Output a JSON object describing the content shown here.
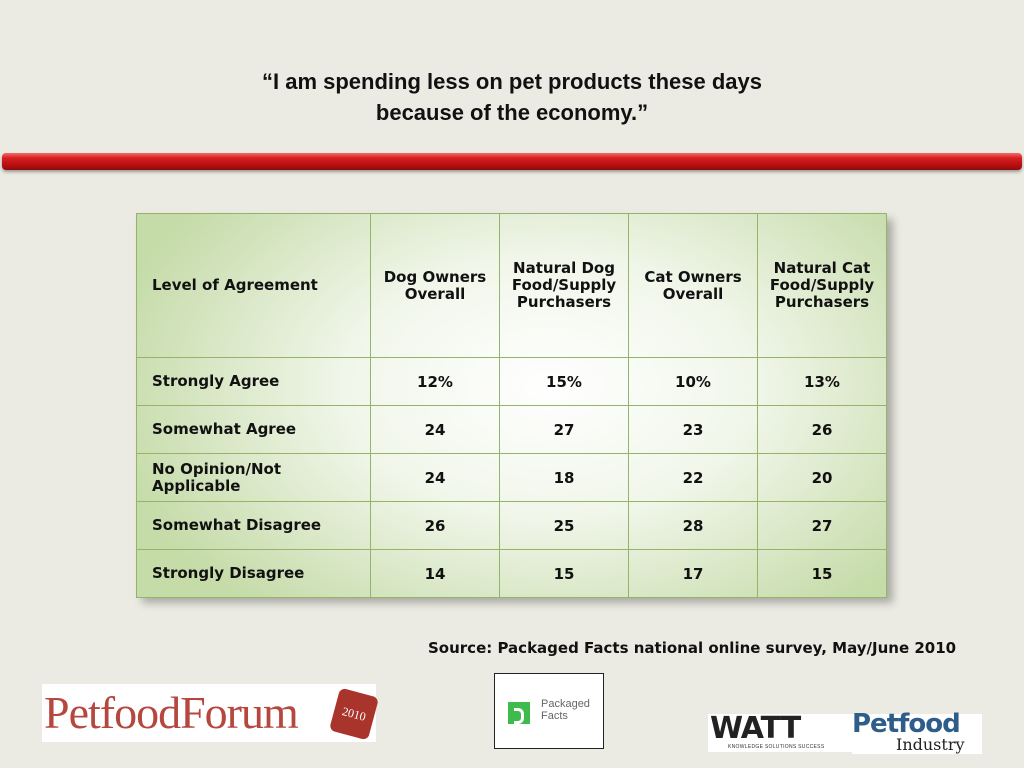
{
  "slide": {
    "title_line1": "“I am spending less on pet products these days",
    "title_line2": "because of the economy.”",
    "source": "Source:  Packaged Facts national online survey, May/June 2010"
  },
  "table": {
    "headers": [
      [
        "Level of Agreement"
      ],
      [
        "Dog Owners",
        "Overall"
      ],
      [
        "Natural Dog",
        "Food/Supply",
        "Purchasers"
      ],
      [
        "Cat Owners",
        "Overall"
      ],
      [
        "Natural Cat",
        "Food/Supply",
        "Purchasers"
      ]
    ],
    "rows": [
      {
        "label": [
          "Strongly Agree"
        ],
        "values": [
          "12%",
          "15%",
          "10%",
          "13%"
        ]
      },
      {
        "label": [
          "Somewhat Agree"
        ],
        "values": [
          "24",
          "27",
          "23",
          "26"
        ]
      },
      {
        "label": [
          "No Opinion/Not",
          "Applicable"
        ],
        "values": [
          "24",
          "18",
          "22",
          "20"
        ]
      },
      {
        "label": [
          "Somewhat Disagree"
        ],
        "values": [
          "26",
          "25",
          "28",
          "27"
        ]
      },
      {
        "label": [
          "Strongly Disagree"
        ],
        "values": [
          "14",
          "15",
          "17",
          "15"
        ]
      }
    ]
  },
  "logos": {
    "petfood_forum": {
      "word": "PetfoodForum",
      "year": "2010"
    },
    "packaged_facts": {
      "line1": "Packaged",
      "line2": "Facts"
    },
    "watt": {
      "word": "WATT",
      "tagline": "KNOWLEDGE  SOLUTIONS  SUCCESS"
    },
    "petfood_industry": {
      "line1": "Petfood",
      "line2": "Industry"
    }
  },
  "colors": {
    "accent_bar": "#d81e1e",
    "table_border": "#92b56a",
    "table_edge": "#c5dba8"
  }
}
